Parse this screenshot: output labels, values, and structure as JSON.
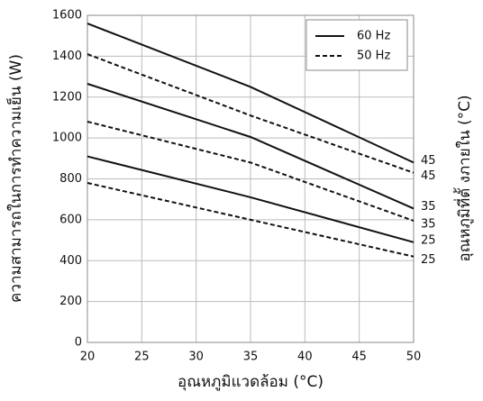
{
  "chart_data": {
    "type": "line",
    "x_label": "อุณหภูมิแวดล้อม (°C)",
    "y_label": "ความสามารถในการทำความเย็น (W)",
    "y2_label": "อุณหภูมิที่ตั้ งภายใน (°C)",
    "x": [
      20,
      35,
      50
    ],
    "series": [
      {
        "name": "45",
        "color": "#111111",
        "dash": false,
        "values": [
          1560,
          1250,
          880
        ]
      },
      {
        "name": "45",
        "color": "#111111",
        "dash": true,
        "values": [
          1410,
          1110,
          830
        ]
      },
      {
        "name": "35",
        "color": "#111111",
        "dash": false,
        "values": [
          1265,
          1005,
          655
        ]
      },
      {
        "name": "35",
        "color": "#111111",
        "dash": true,
        "values": [
          1080,
          880,
          595
        ]
      },
      {
        "name": "25",
        "color": "#111111",
        "dash": false,
        "values": [
          910,
          710,
          490
        ]
      },
      {
        "name": "25",
        "color": "#111111",
        "dash": true,
        "values": [
          780,
          600,
          420
        ]
      }
    ],
    "legend": [
      {
        "label": "60 Hz",
        "dash": false
      },
      {
        "label": "50 Hz",
        "dash": true
      }
    ],
    "legend_position": "upper right",
    "xlim": [
      20,
      50
    ],
    "xticks": [
      20,
      25,
      30,
      35,
      40,
      45,
      50
    ],
    "ylim": [
      0,
      1600
    ],
    "yticks": [
      0,
      200,
      400,
      600,
      800,
      1000,
      1200,
      1400,
      1600
    ],
    "grid": true
  }
}
